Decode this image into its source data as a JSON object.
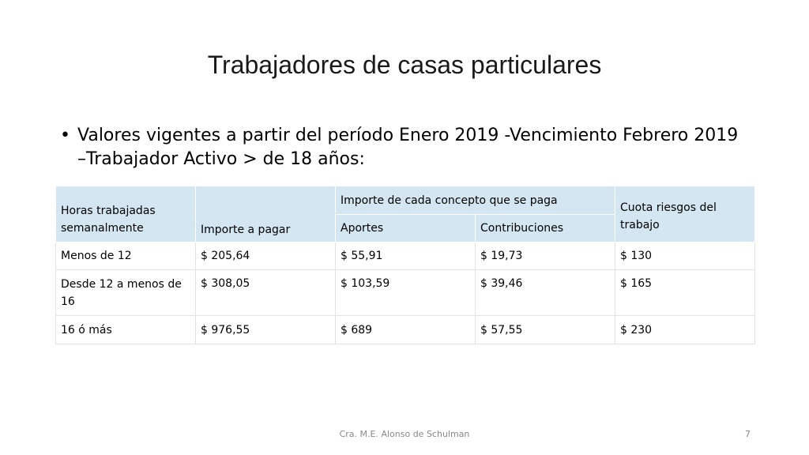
{
  "slide": {
    "title": "Trabajadores de casas particulares",
    "bullet": "Valores vigentes a partir del período Enero 2019 -Vencimiento Febrero 2019 –Trabajador Activo > de 18 años:",
    "bullet_symbol": "•"
  },
  "table": {
    "header": {
      "hours": "Horas trabajadas semanalmente",
      "importe": "Importe a pagar",
      "group": "Importe de cada concepto que se paga",
      "aportes": "Aportes",
      "contribuciones": "Contribuciones",
      "cuota": "Cuota riesgos del trabajo"
    },
    "rows": [
      [
        "Menos de 12",
        "$ 205,64",
        "$ 55,91",
        "$ 19,73",
        "$ 130"
      ],
      [
        "Desde 12 a menos de 16",
        "$ 308,05",
        "$ 103,59",
        "$ 39,46",
        "$ 165"
      ],
      [
        "16 ó más",
        "$ 976,55",
        "$ 689",
        "$ 57,55",
        "$ 230"
      ]
    ],
    "header_color": "#d4e6f1"
  },
  "footer": {
    "author": "Cra. M.E. Alonso de Schulman",
    "page": "7"
  }
}
